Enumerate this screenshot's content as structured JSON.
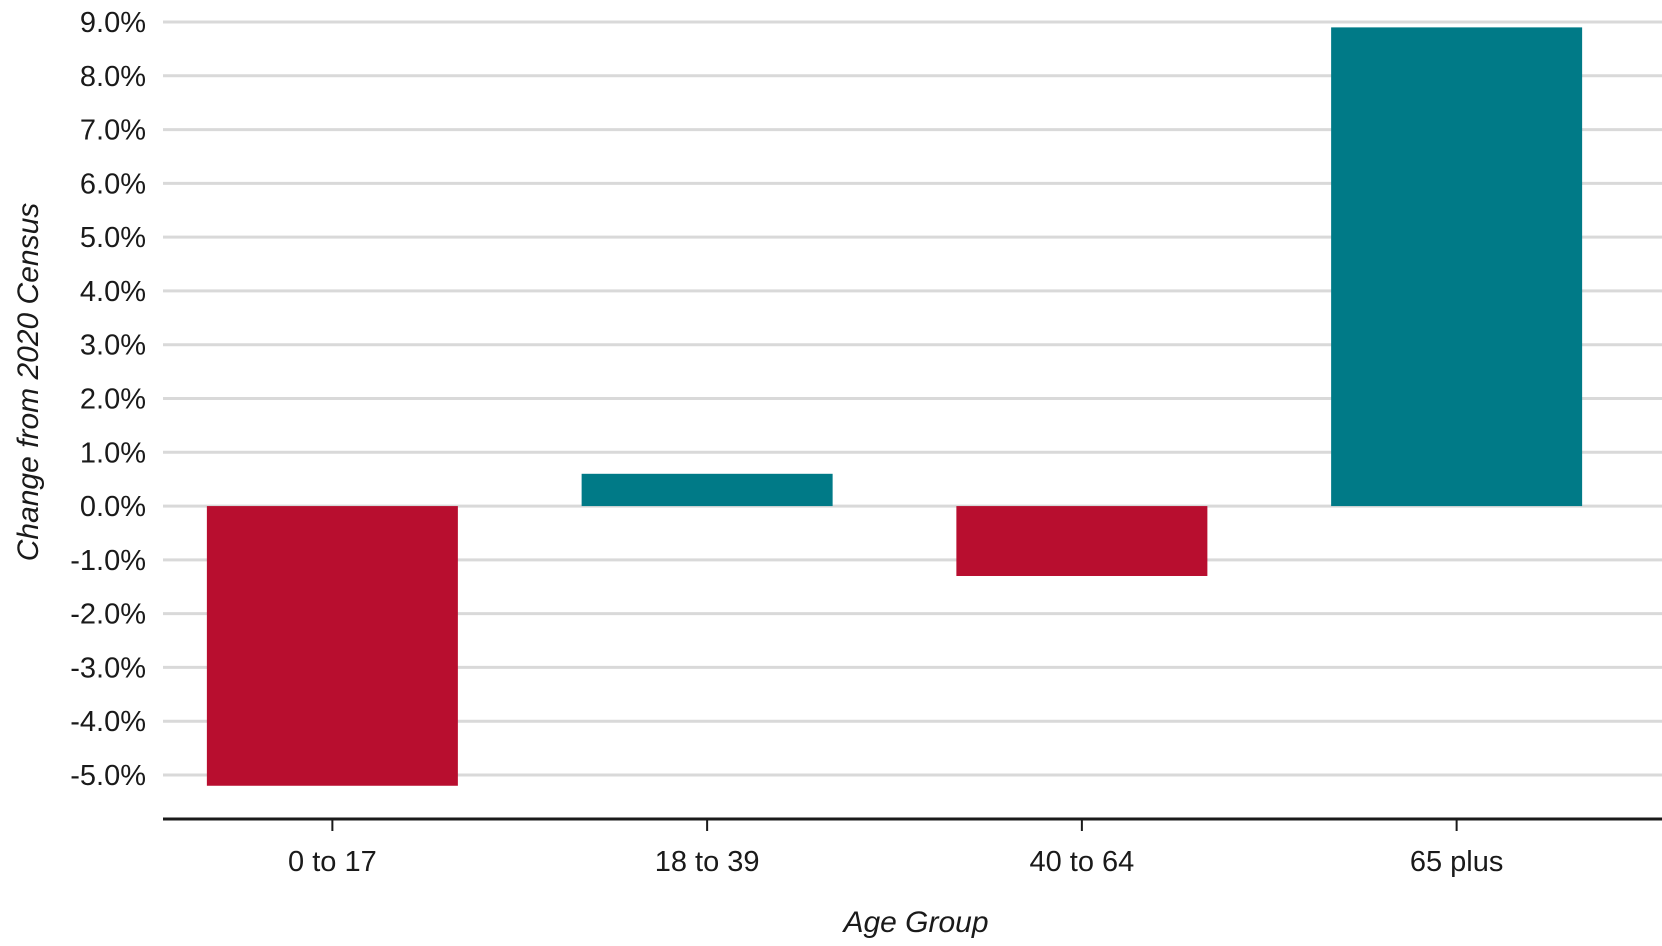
{
  "chart_data": {
    "type": "bar",
    "title": "",
    "xlabel": "Age Group",
    "ylabel": "Change from 2020 Census",
    "categories": [
      "0 to 17",
      "18 to 39",
      "40 to 64",
      "65 plus"
    ],
    "values": [
      -5.2,
      0.6,
      -1.3,
      8.9
    ],
    "ylim": [
      -5.0,
      9.0
    ],
    "yticks": [
      9.0,
      8.0,
      7.0,
      6.0,
      5.0,
      4.0,
      3.0,
      2.0,
      1.0,
      0.0,
      -1.0,
      -2.0,
      -3.0,
      -4.0,
      -5.0
    ],
    "ytick_labels": [
      "9.0%",
      "8.0%",
      "7.0%",
      "6.0%",
      "5.0%",
      "4.0%",
      "3.0%",
      "2.0%",
      "1.0%",
      "0.0%",
      "-1.0%",
      "-2.0%",
      "-3.0%",
      "-4.0%",
      "-5.0%"
    ],
    "grid": true,
    "legend": "none",
    "colors": {
      "positive": "#007a87",
      "negative": "#b80e2f",
      "grid": "#d9d9d9",
      "axis": "#1a1a1a"
    }
  }
}
